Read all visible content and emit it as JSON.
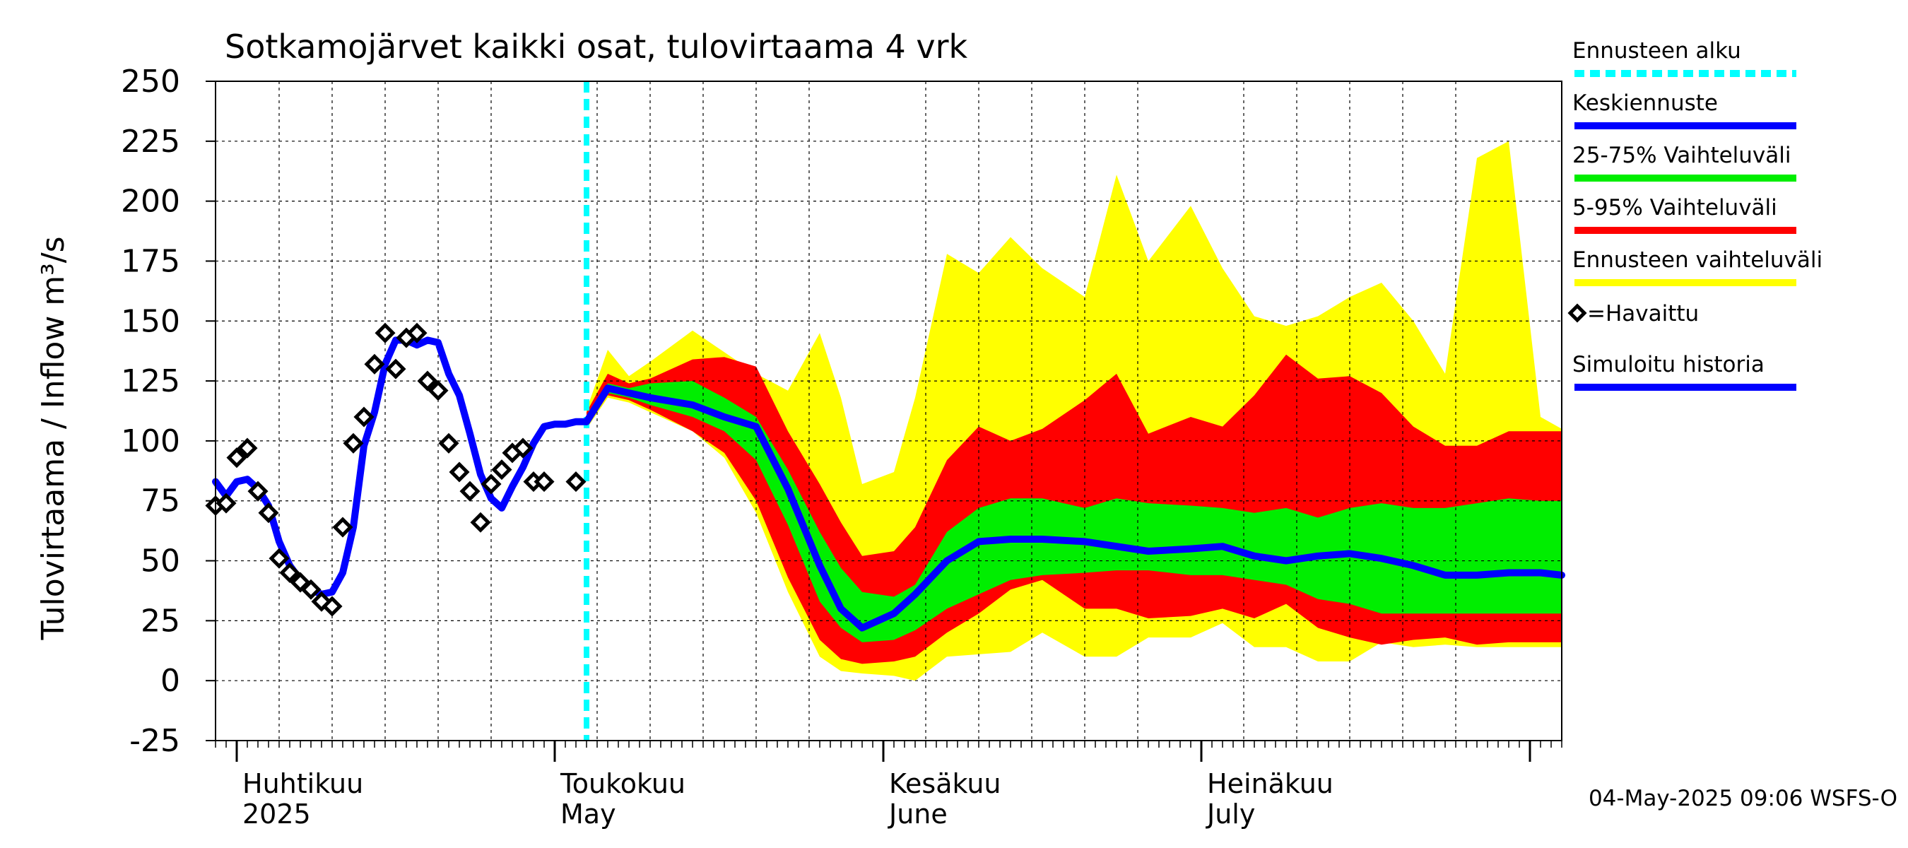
{
  "chart_data": {
    "type": "line",
    "title": "Sotkamojärvet kaikki osat, tulovirtaama  4 vrk",
    "ylabel": "Tulovirtaama / Inflow    m³/s",
    "ylim": [
      -25,
      250
    ],
    "yticks": [
      -25,
      0,
      25,
      50,
      75,
      100,
      125,
      150,
      175,
      200,
      225,
      250
    ],
    "xlim": [
      "2025-03-30",
      "2025-08-04"
    ],
    "forecast_start": "2025-05-04",
    "grid": true,
    "month_labels": [
      {
        "date": "2025-04-01",
        "fi": "Huhtikuu",
        "en": "2025"
      },
      {
        "date": "2025-05-01",
        "fi": "Toukokuu",
        "en": "May"
      },
      {
        "date": "2025-06-01",
        "fi": "Kesäkuu",
        "en": "June"
      },
      {
        "date": "2025-07-01",
        "fi": "Heinäkuu",
        "en": "July"
      }
    ],
    "forecast_dates": [
      "2025-05-04",
      "2025-05-06",
      "2025-05-08",
      "2025-05-10",
      "2025-05-14",
      "2025-05-17",
      "2025-05-20",
      "2025-05-23",
      "2025-05-26",
      "2025-05-28",
      "2025-05-30",
      "2025-06-02",
      "2025-06-04",
      "2025-06-07",
      "2025-06-10",
      "2025-06-13",
      "2025-06-16",
      "2025-06-20",
      "2025-06-23",
      "2025-06-26",
      "2025-06-30",
      "2025-07-03",
      "2025-07-06",
      "2025-07-09",
      "2025-07-12",
      "2025-07-15",
      "2025-07-18",
      "2025-07-21",
      "2025-07-24",
      "2025-07-27",
      "2025-07-30",
      "2025-08-02",
      "2025-08-04"
    ],
    "series": [
      {
        "name": "Ennusteen vaihteluväli",
        "color": "#ffff00",
        "upper": [
          113,
          138,
          127,
          133,
          146,
          137,
          128,
          121,
          145,
          118,
          82,
          87,
          118,
          178,
          170,
          185,
          172,
          160,
          211,
          175,
          198,
          172,
          152,
          148,
          152,
          160,
          166,
          150,
          128,
          218,
          225,
          110,
          105
        ],
        "lower": [
          105,
          118,
          116,
          112,
          104,
          93,
          70,
          37,
          10,
          4,
          3,
          2,
          0,
          10,
          11,
          12,
          20,
          10,
          10,
          18,
          18,
          24,
          14,
          14,
          8,
          8,
          16,
          14,
          15,
          14,
          14,
          14,
          14
        ]
      },
      {
        "name": "5-95% Vaihteluväli",
        "color": "#ff0000",
        "upper": [
          112,
          128,
          124,
          126,
          134,
          135,
          131,
          104,
          82,
          66,
          52,
          54,
          64,
          92,
          106,
          100,
          105,
          117,
          128,
          103,
          110,
          106,
          119,
          136,
          126,
          127,
          120,
          106,
          98,
          98,
          104,
          104,
          104
        ],
        "lower": [
          106,
          119,
          117,
          113,
          104,
          95,
          75,
          43,
          17,
          9,
          7,
          8,
          10,
          20,
          28,
          38,
          42,
          30,
          30,
          26,
          27,
          30,
          26,
          32,
          22,
          18,
          15,
          17,
          18,
          15,
          16,
          16,
          16
        ]
      },
      {
        "name": "25-75% Vaihteluväli",
        "color": "#00ee00",
        "upper": [
          110,
          124,
          122,
          124,
          125,
          118,
          110,
          88,
          62,
          47,
          37,
          35,
          40,
          62,
          72,
          76,
          76,
          72,
          76,
          74,
          73,
          72,
          70,
          72,
          68,
          72,
          74,
          72,
          72,
          74,
          76,
          75,
          75
        ],
        "lower": [
          107,
          120,
          118,
          115,
          110,
          104,
          92,
          65,
          33,
          22,
          16,
          17,
          21,
          30,
          36,
          42,
          44,
          45,
          46,
          46,
          44,
          44,
          42,
          40,
          34,
          32,
          28,
          28,
          28,
          28,
          28,
          28,
          28
        ]
      },
      {
        "name": "Keskiennuste",
        "color": "#0000ff",
        "values": [
          108,
          122,
          120,
          118,
          115,
          110,
          106,
          80,
          48,
          30,
          22,
          28,
          36,
          50,
          58,
          59,
          59,
          58,
          56,
          54,
          55,
          56,
          52,
          50,
          52,
          53,
          51,
          48,
          44,
          44,
          45,
          45,
          44
        ]
      },
      {
        "name": "Simuloitu historia",
        "color": "#0000ff",
        "dates": [
          "2025-03-30",
          "2025-03-31",
          "2025-04-01",
          "2025-04-02",
          "2025-04-03",
          "2025-04-04",
          "2025-04-05",
          "2025-04-06",
          "2025-04-07",
          "2025-04-08",
          "2025-04-09",
          "2025-04-10",
          "2025-04-11",
          "2025-04-12",
          "2025-04-13",
          "2025-04-14",
          "2025-04-15",
          "2025-04-16",
          "2025-04-17",
          "2025-04-18",
          "2025-04-19",
          "2025-04-20",
          "2025-04-21",
          "2025-04-22",
          "2025-04-23",
          "2025-04-24",
          "2025-04-25",
          "2025-04-26",
          "2025-04-27",
          "2025-04-28",
          "2025-04-29",
          "2025-04-30",
          "2025-05-01",
          "2025-05-02",
          "2025-05-03",
          "2025-05-04"
        ],
        "values": [
          83,
          77,
          83,
          84,
          80,
          73,
          58,
          48,
          42,
          38,
          36,
          37,
          45,
          64,
          98,
          112,
          132,
          142,
          142,
          140,
          142,
          141,
          128,
          119,
          103,
          86,
          76,
          72,
          81,
          89,
          99,
          106,
          107,
          107,
          108,
          108
        ]
      }
    ],
    "observed": {
      "name": "=Havaittu",
      "dates": [
        "2025-03-30",
        "2025-03-31",
        "2025-04-01",
        "2025-04-02",
        "2025-04-03",
        "2025-04-04",
        "2025-04-05",
        "2025-04-06",
        "2025-04-07",
        "2025-04-08",
        "2025-04-09",
        "2025-04-10",
        "2025-04-11",
        "2025-04-12",
        "2025-04-13",
        "2025-04-14",
        "2025-04-15",
        "2025-04-16",
        "2025-04-17",
        "2025-04-18",
        "2025-04-19",
        "2025-04-20",
        "2025-04-21",
        "2025-04-22",
        "2025-04-23",
        "2025-04-24",
        "2025-04-25",
        "2025-04-26",
        "2025-04-27",
        "2025-04-28",
        "2025-04-29",
        "2025-04-30",
        "2025-05-03"
      ],
      "values": [
        73,
        74,
        93,
        97,
        79,
        70,
        51,
        45,
        41,
        38,
        33,
        31,
        64,
        99,
        110,
        132,
        145,
        130,
        143,
        145,
        125,
        121,
        99,
        87,
        79,
        66,
        82,
        88,
        95,
        97,
        83,
        83,
        83
      ]
    },
    "legend": [
      {
        "label": "Ennusteen alku",
        "color": "#00ffff",
        "style": "dashed"
      },
      {
        "label": "Keskiennuste",
        "color": "#0000ff",
        "style": "solid"
      },
      {
        "label": "25-75% Vaihteluväli",
        "color": "#00ee00",
        "style": "solid"
      },
      {
        "label": "5-95% Vaihteluväli",
        "color": "#ff0000",
        "style": "solid"
      },
      {
        "label": "Ennusteen vaihteluväli",
        "color": "#ffff00",
        "style": "solid"
      },
      {
        "label": "=Havaittu",
        "color": "#000000",
        "style": "diamond"
      },
      {
        "label": "Simuloitu historia",
        "color": "#0000ff",
        "style": "solid"
      }
    ],
    "legend_position": "right"
  },
  "footer": "04-May-2025 09:06 WSFS-O"
}
